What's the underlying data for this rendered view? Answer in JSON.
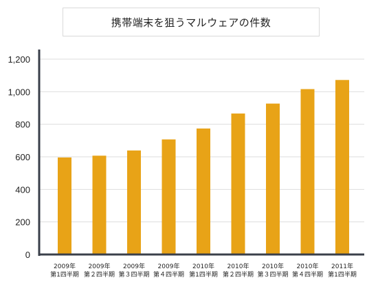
{
  "chart_data": {
    "type": "bar",
    "title": "携帯端末を狙うマルウェアの件数",
    "categories": [
      [
        "2009年",
        "第1四半期"
      ],
      [
        "2009年",
        "第２四半期"
      ],
      [
        "2009年",
        "第３四半期"
      ],
      [
        "2009年",
        "第４四半期"
      ],
      [
        "2010年",
        "第1四半期"
      ],
      [
        "2010年",
        "第２四半期"
      ],
      [
        "2010年",
        "第３四半期"
      ],
      [
        "2010年",
        "第４四半期"
      ],
      [
        "2011年",
        "第1四半期"
      ]
    ],
    "values": [
      596,
      607,
      639,
      707,
      774,
      866,
      927,
      1016,
      1072
    ],
    "yticks": [
      0,
      200,
      400,
      600,
      800,
      1000,
      1200
    ],
    "ytick_labels": [
      "0",
      "200",
      "400",
      "600",
      "800",
      "1,000",
      "1,200"
    ],
    "ylim": [
      0,
      1200
    ],
    "xlabel": "",
    "ylabel": "",
    "grid": true,
    "legend": "none",
    "bar_color": "#E8A317",
    "grid_color": "#dddddd",
    "axis_color": "#3a3f4a"
  }
}
